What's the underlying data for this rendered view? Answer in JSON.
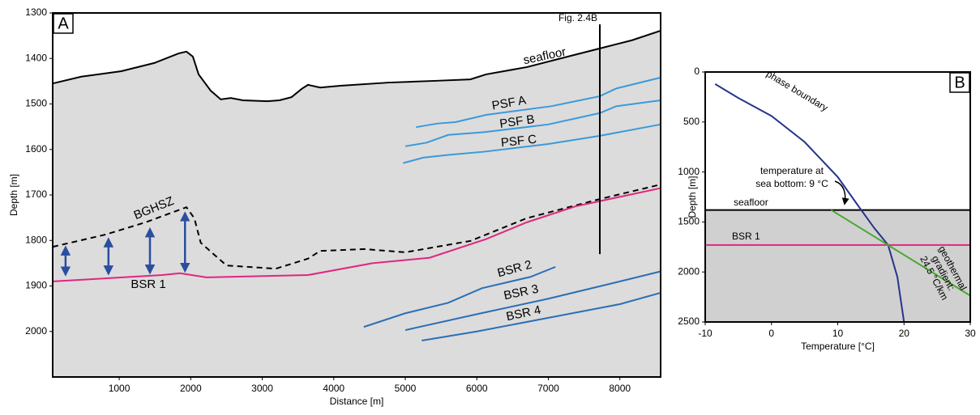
{
  "chart_data": [
    {
      "type": "line",
      "panel_label": "A",
      "xlabel": "Distance [m]",
      "ylabel": "Depth [m]",
      "xlim": [
        70,
        8570
      ],
      "ylim": [
        2100,
        1300
      ],
      "xticks": [
        1000,
        2000,
        3000,
        4000,
        5000,
        6000,
        7000,
        8000
      ],
      "yticks": [
        1300,
        1400,
        1500,
        1600,
        1700,
        1800,
        1900,
        2000
      ],
      "series": [
        {
          "name": "seafloor",
          "color": "#000000",
          "fill": "#dcdcdc",
          "x": [
            70,
            470,
            1030,
            1490,
            1830,
            1940,
            2030,
            2110,
            2280,
            2420,
            2560,
            2730,
            3070,
            3240,
            3410,
            3550,
            3640,
            3810,
            4090,
            4770,
            5450,
            5910,
            6130,
            6700,
            7270,
            7720,
            8170,
            8570
          ],
          "values": [
            1455,
            1440,
            1428,
            1410,
            1389,
            1385,
            1396,
            1435,
            1471,
            1490,
            1487,
            1492,
            1494,
            1492,
            1485,
            1467,
            1458,
            1464,
            1460,
            1453,
            1449,
            1446,
            1435,
            1419,
            1396,
            1378,
            1360,
            1339
          ]
        },
        {
          "name": "PSF A",
          "color": "#3a9ad9",
          "x": [
            5150,
            5450,
            5700,
            6130,
            7040,
            7720,
            7950,
            8570
          ],
          "values": [
            1551,
            1543,
            1540,
            1524,
            1505,
            1483,
            1466,
            1442
          ]
        },
        {
          "name": "PSF B",
          "color": "#3a9ad9",
          "x": [
            5000,
            5300,
            5600,
            6100,
            7000,
            7720,
            7950,
            8570
          ],
          "values": [
            1593,
            1585,
            1568,
            1562,
            1545,
            1520,
            1505,
            1492
          ]
        },
        {
          "name": "PSF C",
          "color": "#3a9ad9",
          "x": [
            4970,
            5250,
            5600,
            6100,
            7000,
            7720,
            8570
          ],
          "values": [
            1630,
            1618,
            1612,
            1605,
            1588,
            1570,
            1545
          ]
        },
        {
          "name": "BGHSZ",
          "color": "#000000",
          "dash": true,
          "x": [
            70,
            810,
            1370,
            1940,
            2050,
            2140,
            2500,
            3190,
            3640,
            3810,
            4430,
            5000,
            5910,
            6700,
            7720,
            8570
          ],
          "values": [
            1814,
            1787,
            1760,
            1727,
            1751,
            1805,
            1855,
            1862,
            1840,
            1823,
            1819,
            1826,
            1801,
            1751,
            1709,
            1677
          ]
        },
        {
          "name": "BSR 1",
          "color": "#e0267f",
          "x": [
            70,
            1600,
            1850,
            2220,
            3640,
            4540,
            5340,
            6130,
            6700,
            7380,
            8570
          ],
          "values": [
            1890,
            1876,
            1872,
            1881,
            1876,
            1850,
            1838,
            1797,
            1760,
            1725,
            1685
          ]
        },
        {
          "name": "BSR 2",
          "color": "#2a6fb5",
          "x": [
            4420,
            5000,
            5600,
            6070,
            6750,
            7100
          ],
          "values": [
            1990,
            1960,
            1937,
            1905,
            1880,
            1858
          ]
        },
        {
          "name": "BSR 3",
          "color": "#2a6fb5",
          "x": [
            5000,
            6000,
            7000,
            8000,
            8570
          ],
          "values": [
            1997,
            1962,
            1928,
            1890,
            1868
          ]
        },
        {
          "name": "BSR 4",
          "color": "#2a6fb5",
          "x": [
            5230,
            6000,
            7000,
            8000,
            8570
          ],
          "values": [
            2020,
            2000,
            1970,
            1940,
            1915
          ]
        }
      ],
      "reference_line": {
        "label": "Fig. 2.4B",
        "x": 7720,
        "y_top": 1325,
        "y_bottom": 1830
      },
      "arrows": {
        "color": "#2a4ea0",
        "x": [
          250,
          850,
          1430,
          1920
        ],
        "top": [
          1810,
          1792,
          1770,
          1735
        ],
        "bottom": [
          1880,
          1878,
          1876,
          1872
        ]
      }
    },
    {
      "type": "line",
      "panel_label": "B",
      "xlabel": "Temperature [°C]",
      "ylabel": "Depth [m]",
      "xlim": [
        -10,
        30
      ],
      "ylim": [
        2500,
        0
      ],
      "xticks": [
        -10,
        0,
        10,
        20,
        30
      ],
      "yticks": [
        0,
        500,
        1000,
        1500,
        2000,
        2500
      ],
      "series": [
        {
          "name": "seafloor",
          "color": "#000000",
          "fill": "#d0d0d0",
          "x": [
            -10,
            30
          ],
          "values": [
            1380,
            1380
          ]
        },
        {
          "name": "BSR 1",
          "color": "#e0267f",
          "x": [
            -10,
            30
          ],
          "values": [
            1730,
            1730
          ]
        },
        {
          "name": "phase boundary",
          "color": "#26358a",
          "x": [
            -8.5,
            -5,
            0,
            5,
            10,
            13,
            15.5,
            17.6,
            19,
            20
          ],
          "values": [
            120,
            260,
            440,
            700,
            1050,
            1330,
            1560,
            1730,
            2050,
            2500
          ]
        },
        {
          "name": [
            "geothermal",
            "gradient:",
            "24.5 °C/km"
          ],
          "color": "#4aa832",
          "x": [
            9,
            30
          ],
          "values": [
            1380,
            2237
          ]
        }
      ],
      "annotation": {
        "lines": [
          "temperature at",
          "sea bottom: 9 °C"
        ]
      }
    }
  ]
}
